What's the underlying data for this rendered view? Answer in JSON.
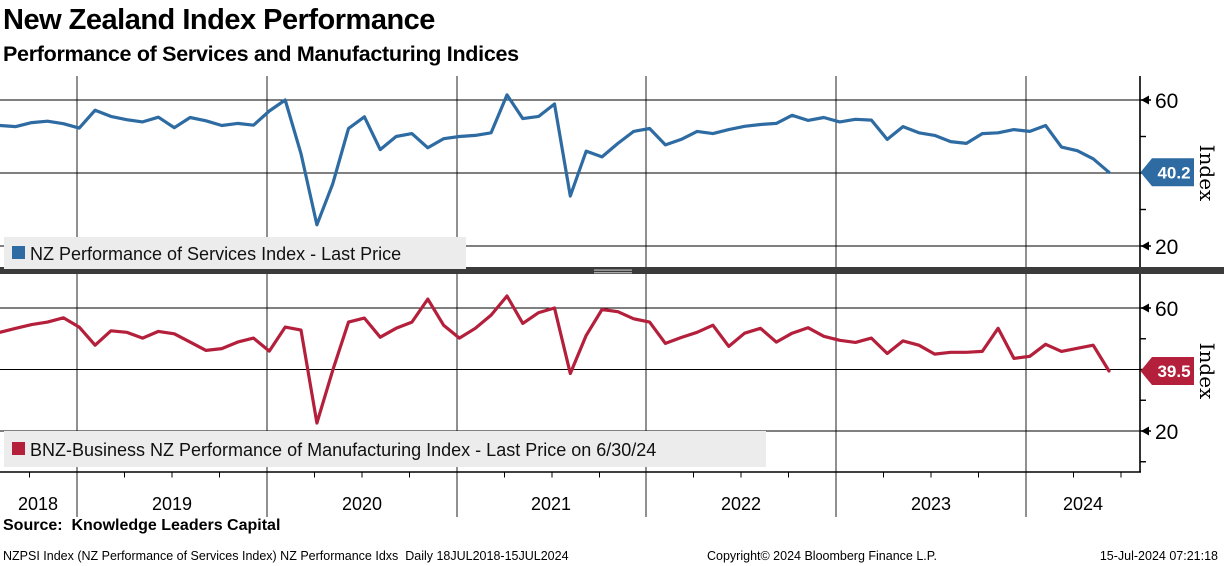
{
  "header": {
    "title": "New Zealand Index Performance",
    "subtitle": "Performance of Services and Manufacturing Indices"
  },
  "x_axis": {
    "years": [
      "2018",
      "2019",
      "2020",
      "2021",
      "2022",
      "2023",
      "2024"
    ]
  },
  "chart_data": [
    {
      "type": "line",
      "panel": "top",
      "series_name": "NZ Performance of Services Index - Last Price",
      "color": "#2d6ba2",
      "last_price_label": "40.2",
      "ylabel": "Index",
      "ytick_labels": [
        "60",
        "20"
      ],
      "ytick_values": [
        60,
        20
      ],
      "minor_tick_values": [
        50,
        40,
        30
      ],
      "x_range_months": "Aug 2018 to Jun 2024, monthly",
      "values": [
        53.0,
        52.7,
        53.8,
        54.2,
        53.5,
        52.3,
        57.2,
        55.5,
        54.6,
        54.0,
        55.3,
        52.4,
        55.2,
        54.3,
        53.0,
        53.6,
        53.1,
        57.0,
        60.0,
        45.3,
        25.8,
        37.0,
        52.2,
        55.4,
        46.4,
        50.0,
        50.8,
        46.9,
        49.4,
        50.0,
        50.3,
        51.0,
        61.4,
        54.9,
        55.5,
        58.9,
        33.7,
        46.0,
        44.4,
        48.1,
        51.4,
        52.2,
        47.7,
        49.2,
        51.4,
        50.8,
        51.9,
        52.8,
        53.3,
        53.6,
        55.8,
        54.4,
        55.2,
        54.0,
        54.7,
        54.5,
        49.2,
        52.7,
        51.0,
        50.3,
        48.6,
        48.1,
        50.8,
        51.0,
        51.9,
        51.4,
        53.0,
        47.1,
        46.1,
        43.9,
        40.2
      ]
    },
    {
      "type": "line",
      "panel": "bottom",
      "series_name": "BNZ-Business NZ Performance of Manufacturing Index - Last Price on 6/30/24",
      "color": "#b41f3b",
      "last_price_label": "39.5",
      "ylabel": "Index",
      "ytick_labels": [
        "60",
        "20"
      ],
      "ytick_values": [
        60,
        20
      ],
      "minor_tick_values": [
        50,
        40,
        30,
        10
      ],
      "x_range_months": "Aug 2018 to Jun 2024, monthly",
      "values": [
        52.1,
        53.4,
        54.6,
        55.4,
        56.8,
        53.8,
        47.9,
        52.6,
        52.1,
        50.2,
        52.4,
        51.6,
        48.9,
        46.2,
        46.8,
        48.9,
        50.2,
        46.0,
        53.8,
        52.8,
        22.6,
        39.7,
        55.4,
        56.7,
        50.5,
        53.4,
        55.4,
        62.9,
        54.4,
        50.2,
        53.4,
        57.7,
        63.9,
        55.0,
        58.5,
        60.0,
        38.7,
        51.1,
        59.5,
        58.8,
        56.5,
        55.4,
        48.5,
        50.4,
        52.1,
        54.4,
        47.5,
        51.8,
        53.4,
        48.9,
        51.8,
        53.6,
        50.8,
        49.5,
        48.8,
        50.2,
        45.2,
        49.3,
        47.9,
        45.0,
        45.6,
        45.6,
        45.9,
        53.4,
        43.6,
        44.3,
        48.2,
        45.9,
        46.9,
        47.9,
        39.5
      ]
    }
  ],
  "source_line": "Source:  Knowledge Leaders Capital",
  "footer": {
    "left": "NZPSI Index (NZ Performance of Services Index) NZ Performance Idxs  Daily 18JUL2018-15JUL2024",
    "center": "Copyright© 2024 Bloomberg Finance L.P.",
    "right": "15-Jul-2024 07:21:18"
  }
}
